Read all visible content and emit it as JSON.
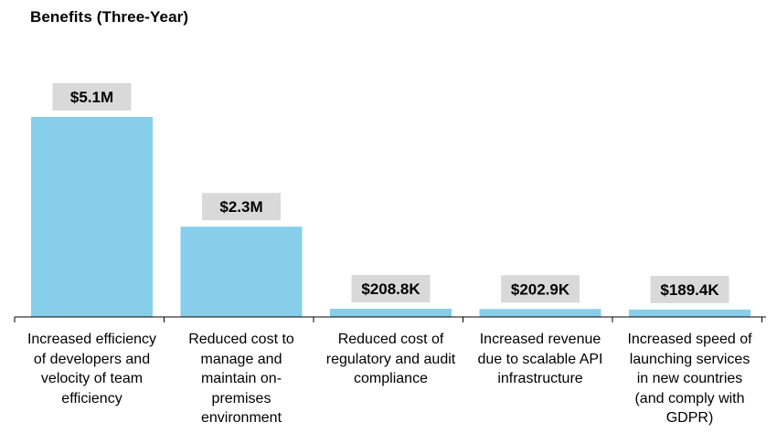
{
  "chart_data": {
    "type": "bar",
    "title": "Benefits (Three-Year)",
    "categories": [
      "Increased efficiency of developers and velocity of team efficiency",
      "Reduced cost to manage and maintain on-premises environment",
      "Reduced cost of regulatory and audit compliance",
      "Increased revenue due to scalable API infrastructure",
      "Increased speed of launching services in new countries (and comply with GDPR)"
    ],
    "values": [
      5100000,
      2300000,
      208800,
      202900,
      189400
    ],
    "value_labels": [
      "$5.1M",
      "$2.3M",
      "$208.8K",
      "$202.9K",
      "$189.4K"
    ],
    "category_lines": [
      [
        "Increased efficiency",
        "of developers and",
        "velocity of team",
        "efficiency"
      ],
      [
        "Reduced cost to",
        "manage and",
        "maintain on-",
        "premises",
        "environment"
      ],
      [
        "Reduced cost of",
        "regulatory and audit",
        "compliance"
      ],
      [
        "Increased revenue",
        "due to scalable API",
        "infrastructure"
      ],
      [
        "Increased speed of",
        "launching services",
        "in new countries",
        "(and comply with",
        "GDPR)"
      ]
    ],
    "xlabel": "",
    "ylabel": "",
    "ylim": [
      0,
      5100000
    ],
    "grid": false,
    "legend": "none",
    "colors": {
      "bar": "#87CEEB",
      "label_box": "#D9D9D9",
      "axis": "#000000"
    }
  }
}
